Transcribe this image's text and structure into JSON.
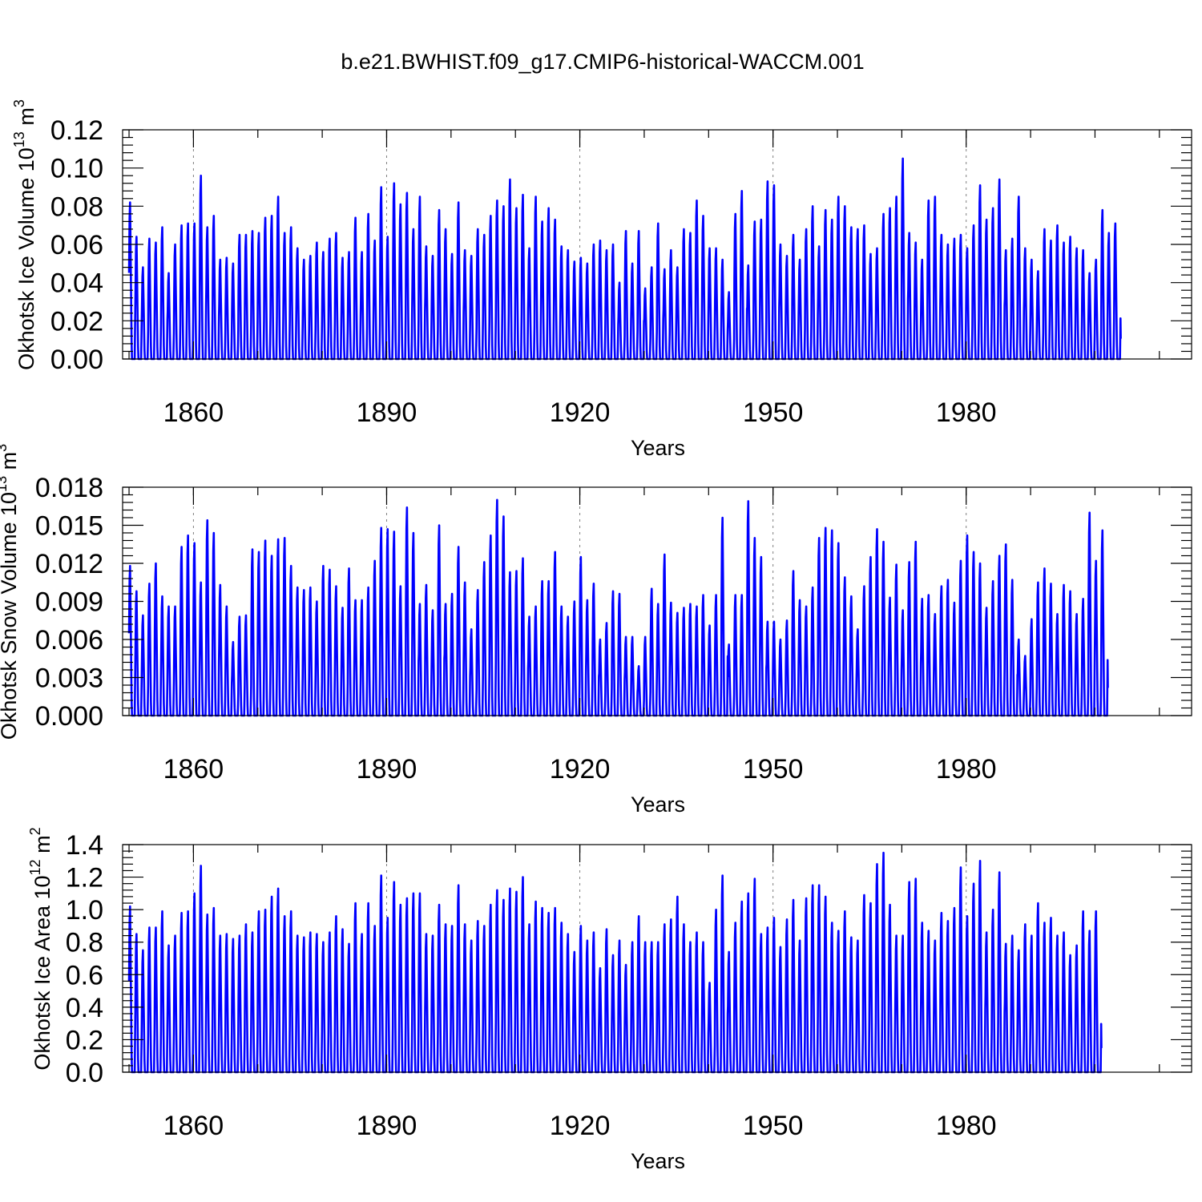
{
  "title": "b.e21.BWHIST.f09_g17.CMIP6-historical-WACCM.001",
  "chart_data": [
    {
      "type": "line",
      "id": "ice-volume",
      "ylabel": "Okhotsk Ice Volume 10",
      "ylabel_exp": "13",
      "ylabel_unit": " m",
      "ylabel_unit_exp": "3",
      "xlabel": "Years",
      "xlim": [
        1849,
        2015
      ],
      "ylim": [
        0,
        0.12
      ],
      "xticks": [
        1860,
        1890,
        1920,
        1950,
        1980
      ],
      "yticks": [
        "0.00",
        "0.02",
        "0.04",
        "0.06",
        "0.08",
        "0.10",
        "0.12"
      ],
      "ytick_values": [
        0,
        0.02,
        0.04,
        0.06,
        0.08,
        0.1,
        0.12
      ],
      "grid": "dashed vertical at x ticks",
      "color": "#0000ff",
      "series_start_year": 1850,
      "annual_peaks": [
        0.082,
        0.064,
        0.048,
        0.063,
        0.061,
        0.069,
        0.045,
        0.06,
        0.07,
        0.071,
        0.071,
        0.096,
        0.069,
        0.075,
        0.052,
        0.053,
        0.05,
        0.065,
        0.065,
        0.067,
        0.066,
        0.074,
        0.075,
        0.085,
        0.066,
        0.069,
        0.058,
        0.052,
        0.054,
        0.061,
        0.056,
        0.063,
        0.066,
        0.053,
        0.056,
        0.074,
        0.056,
        0.076,
        0.062,
        0.09,
        0.064,
        0.092,
        0.081,
        0.087,
        0.068,
        0.085,
        0.059,
        0.054,
        0.078,
        0.068,
        0.055,
        0.082,
        0.057,
        0.054,
        0.068,
        0.065,
        0.075,
        0.083,
        0.08,
        0.094,
        0.079,
        0.086,
        0.058,
        0.085,
        0.072,
        0.079,
        0.073,
        0.059,
        0.057,
        0.051,
        0.053,
        0.05,
        0.06,
        0.062,
        0.057,
        0.06,
        0.04,
        0.067,
        0.05,
        0.067,
        0.037,
        0.048,
        0.071,
        0.047,
        0.057,
        0.048,
        0.068,
        0.066,
        0.083,
        0.075,
        0.058,
        0.058,
        0.052,
        0.035,
        0.076,
        0.088,
        0.049,
        0.072,
        0.073,
        0.093,
        0.091,
        0.06,
        0.054,
        0.065,
        0.052,
        0.068,
        0.08,
        0.059,
        0.078,
        0.073,
        0.085,
        0.08,
        0.069,
        0.068,
        0.07,
        0.055,
        0.058,
        0.076,
        0.079,
        0.085,
        0.105,
        0.066,
        0.061,
        0.052,
        0.083,
        0.085,
        0.065,
        0.06,
        0.063,
        0.065,
        0.058,
        0.07,
        0.091,
        0.073,
        0.079,
        0.094,
        0.057,
        0.063,
        0.085,
        0.058,
        0.052,
        0.046,
        0.068,
        0.062,
        0.07,
        0.061,
        0.064,
        0.058,
        0.057,
        0.045,
        0.052,
        0.078,
        0.066,
        0.071
      ]
    },
    {
      "type": "line",
      "id": "snow-volume",
      "ylabel": "Okhotsk Snow Volume 10",
      "ylabel_exp": "13",
      "ylabel_unit": " m",
      "ylabel_unit_exp": "3",
      "xlabel": "Years",
      "xlim": [
        1849,
        2015
      ],
      "ylim": [
        0,
        0.018
      ],
      "xticks": [
        1860,
        1890,
        1920,
        1950,
        1980
      ],
      "yticks": [
        "0.000",
        "0.003",
        "0.006",
        "0.009",
        "0.012",
        "0.015",
        "0.018"
      ],
      "ytick_values": [
        0,
        0.003,
        0.006,
        0.009,
        0.012,
        0.015,
        0.018
      ],
      "grid": "dashed vertical at x ticks",
      "color": "#0000ff",
      "series_start_year": 1850,
      "annual_peaks": [
        0.0118,
        0.0098,
        0.0079,
        0.0104,
        0.012,
        0.0094,
        0.0086,
        0.0086,
        0.0133,
        0.0142,
        0.0136,
        0.0105,
        0.0154,
        0.0144,
        0.0103,
        0.0086,
        0.0058,
        0.0078,
        0.0079,
        0.0131,
        0.0129,
        0.0138,
        0.0126,
        0.0139,
        0.014,
        0.0118,
        0.0101,
        0.0099,
        0.0101,
        0.009,
        0.0118,
        0.0115,
        0.0102,
        0.0085,
        0.0116,
        0.0091,
        0.0091,
        0.0101,
        0.0122,
        0.0148,
        0.0147,
        0.0145,
        0.0102,
        0.0164,
        0.0144,
        0.0088,
        0.0103,
        0.0083,
        0.015,
        0.0088,
        0.0096,
        0.0133,
        0.0105,
        0.0068,
        0.0099,
        0.0121,
        0.0142,
        0.017,
        0.0157,
        0.0113,
        0.0114,
        0.0124,
        0.0078,
        0.0086,
        0.0106,
        0.0106,
        0.0129,
        0.0086,
        0.0078,
        0.009,
        0.0125,
        0.0091,
        0.0104,
        0.006,
        0.0073,
        0.0098,
        0.0096,
        0.0062,
        0.0062,
        0.0039,
        0.0062,
        0.01,
        0.0088,
        0.0127,
        0.0089,
        0.0081,
        0.0085,
        0.0088,
        0.0086,
        0.0095,
        0.0071,
        0.0095,
        0.0156,
        0.0056,
        0.0095,
        0.0095,
        0.0169,
        0.014,
        0.0125,
        0.0074,
        0.0074,
        0.006,
        0.0075,
        0.0114,
        0.0091,
        0.0086,
        0.0101,
        0.014,
        0.0148,
        0.0146,
        0.0136,
        0.0109,
        0.0094,
        0.0068,
        0.0102,
        0.0125,
        0.0147,
        0.0137,
        0.0093,
        0.0119,
        0.0083,
        0.0121,
        0.0137,
        0.0092,
        0.0095,
        0.008,
        0.0102,
        0.0107,
        0.0089,
        0.0122,
        0.0142,
        0.0129,
        0.012,
        0.0085,
        0.0106,
        0.0126,
        0.0135,
        0.0107,
        0.006,
        0.0047,
        0.0076,
        0.0105,
        0.0116,
        0.0104,
        0.008,
        0.0103,
        0.0098,
        0.008,
        0.0092,
        0.016,
        0.0122,
        0.0146
      ]
    },
    {
      "type": "line",
      "id": "ice-area",
      "ylabel": "Okhotsk Ice Area 10",
      "ylabel_exp": "12",
      "ylabel_unit": " m",
      "ylabel_unit_exp": "2",
      "xlabel": "Years",
      "xlim": [
        1849,
        2015
      ],
      "ylim": [
        0,
        1.4
      ],
      "xticks": [
        1860,
        1890,
        1920,
        1950,
        1980
      ],
      "yticks": [
        "0.0",
        "0.2",
        "0.4",
        "0.6",
        "0.8",
        "1.0",
        "1.2",
        "1.4"
      ],
      "ytick_values": [
        0,
        0.2,
        0.4,
        0.6,
        0.8,
        1.0,
        1.2,
        1.4
      ],
      "grid": "dashed vertical at x ticks",
      "color": "#0000ff",
      "series_start_year": 1850,
      "annual_peaks": [
        1.02,
        0.85,
        0.75,
        0.89,
        0.89,
        0.99,
        0.78,
        0.84,
        0.98,
        0.99,
        1.1,
        1.27,
        0.97,
        1.01,
        0.84,
        0.85,
        0.82,
        0.84,
        0.91,
        0.86,
        0.99,
        1.0,
        1.08,
        1.13,
        0.96,
        0.99,
        0.84,
        0.83,
        0.86,
        0.85,
        0.8,
        0.86,
        0.96,
        0.88,
        0.79,
        1.04,
        0.85,
        1.04,
        0.9,
        1.21,
        0.95,
        1.17,
        1.03,
        1.07,
        1.1,
        1.1,
        0.85,
        0.84,
        1.03,
        0.91,
        0.9,
        1.15,
        0.91,
        0.81,
        0.93,
        0.9,
        1.03,
        1.12,
        1.06,
        1.13,
        1.11,
        1.2,
        0.91,
        1.05,
        1.01,
        0.98,
        1.01,
        0.92,
        0.85,
        0.74,
        0.9,
        0.81,
        0.86,
        0.64,
        0.88,
        0.72,
        0.81,
        0.66,
        0.8,
        0.96,
        0.8,
        0.8,
        0.8,
        0.91,
        0.94,
        1.08,
        0.91,
        0.8,
        0.86,
        0.8,
        0.55,
        1.0,
        1.21,
        0.74,
        0.92,
        1.05,
        1.1,
        1.19,
        0.85,
        0.89,
        0.95,
        0.77,
        0.94,
        1.06,
        0.81,
        1.07,
        1.15,
        1.15,
        1.08,
        0.92,
        0.87,
        0.99,
        0.83,
        0.81,
        1.09,
        1.04,
        1.28,
        1.35,
        1.03,
        0.84,
        0.84,
        1.17,
        1.19,
        0.92,
        0.87,
        0.81,
        0.98,
        0.93,
        1.01,
        1.26,
        0.96,
        1.16,
        1.3,
        0.86,
        1.0,
        1.23,
        0.79,
        0.84,
        0.75,
        0.91,
        0.84,
        1.04,
        0.92,
        0.95,
        0.84,
        0.86,
        0.72,
        0.78,
        0.99,
        0.87,
        0.99
      ]
    }
  ]
}
